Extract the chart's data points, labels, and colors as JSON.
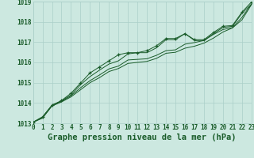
{
  "bg_color": "#cce8e0",
  "grid_color": "#aacfc8",
  "line_color": "#1a5c2a",
  "marker_color": "#1a5c2a",
  "title": "Graphe pression niveau de la mer (hPa)",
  "xlim": [
    0,
    23
  ],
  "ylim": [
    1013,
    1019
  ],
  "yticks": [
    1013,
    1014,
    1015,
    1016,
    1017,
    1018,
    1019
  ],
  "xticks": [
    0,
    1,
    2,
    3,
    4,
    5,
    6,
    7,
    8,
    9,
    10,
    11,
    12,
    13,
    14,
    15,
    16,
    17,
    18,
    19,
    20,
    21,
    22,
    23
  ],
  "series1": [
    1013.05,
    1013.25,
    1013.85,
    1014.05,
    1014.3,
    1014.65,
    1015.0,
    1015.25,
    1015.55,
    1015.7,
    1015.95,
    1016.0,
    1016.05,
    1016.2,
    1016.45,
    1016.5,
    1016.7,
    1016.8,
    1016.95,
    1017.2,
    1017.5,
    1017.7,
    1018.1,
    1018.85
  ],
  "series2": [
    1013.05,
    1013.28,
    1013.88,
    1014.08,
    1014.35,
    1014.75,
    1015.1,
    1015.38,
    1015.68,
    1015.82,
    1016.12,
    1016.15,
    1016.18,
    1016.35,
    1016.58,
    1016.62,
    1016.9,
    1016.98,
    1017.08,
    1017.38,
    1017.62,
    1017.72,
    1018.22,
    1018.88
  ],
  "series3": [
    1013.05,
    1013.3,
    1013.9,
    1014.1,
    1014.4,
    1014.9,
    1015.3,
    1015.62,
    1015.92,
    1016.08,
    1016.42,
    1016.48,
    1016.48,
    1016.72,
    1017.12,
    1017.12,
    1017.42,
    1017.08,
    1017.08,
    1017.42,
    1017.72,
    1017.78,
    1018.42,
    1018.88
  ],
  "series4_markers": [
    1013.05,
    1013.32,
    1013.88,
    1014.12,
    1014.48,
    1014.98,
    1015.48,
    1015.78,
    1016.08,
    1016.38,
    1016.48,
    1016.48,
    1016.58,
    1016.82,
    1017.18,
    1017.18,
    1017.42,
    1017.12,
    1017.12,
    1017.48,
    1017.78,
    1017.82,
    1018.48,
    1018.98
  ],
  "title_fontsize": 7.5,
  "tick_fontsize": 5.5
}
